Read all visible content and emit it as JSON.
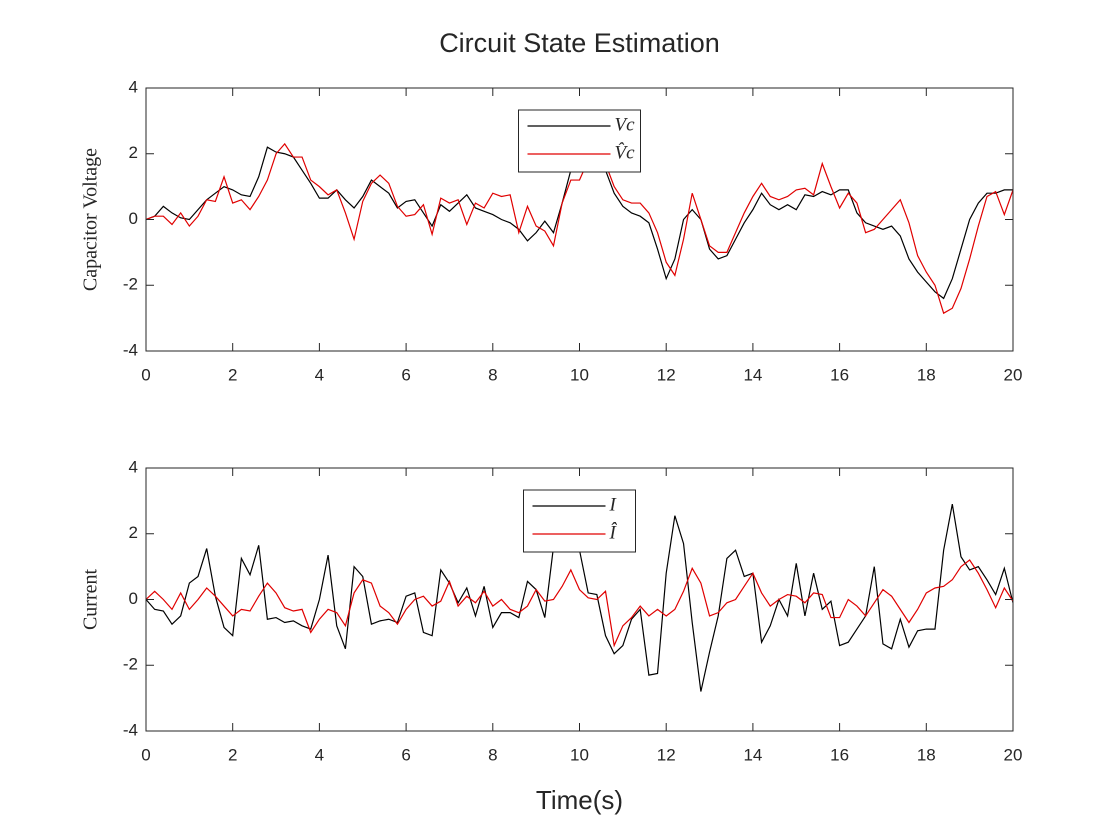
{
  "chart_data": [
    {
      "type": "line",
      "title": "Circuit State Estimation",
      "y_label": "Capacitor  Voltage",
      "legend_loc": "north",
      "x": [
        0,
        0.2,
        0.4,
        0.6,
        0.8,
        1,
        1.2,
        1.4,
        1.6,
        1.8,
        2,
        2.2,
        2.4,
        2.6,
        2.8,
        3,
        3.2,
        3.4,
        3.6,
        3.8,
        4,
        4.2,
        4.4,
        4.6,
        4.8,
        5,
        5.2,
        5.4,
        5.6,
        5.8,
        6,
        6.2,
        6.4,
        6.6,
        6.8,
        7,
        7.2,
        7.4,
        7.6,
        7.8,
        8,
        8.2,
        8.4,
        8.6,
        8.8,
        9,
        9.2,
        9.4,
        9.6,
        9.8,
        10,
        10.2,
        10.4,
        10.6,
        10.8,
        11,
        11.2,
        11.4,
        11.6,
        11.8,
        12,
        12.2,
        12.4,
        12.6,
        12.8,
        13,
        13.2,
        13.4,
        13.6,
        13.8,
        14,
        14.2,
        14.4,
        14.6,
        14.8,
        15,
        15.2,
        15.4,
        15.6,
        15.8,
        16,
        16.2,
        16.4,
        16.6,
        16.8,
        17,
        17.2,
        17.4,
        17.6,
        17.8,
        18,
        18.2,
        18.4,
        18.6,
        18.8,
        19,
        19.2,
        19.4,
        19.6,
        19.8,
        20
      ],
      "series": [
        {
          "name": "Vc",
          "color": "#000000",
          "values": [
            0,
            0.1,
            0.4,
            0.2,
            0.05,
            0,
            0.3,
            0.6,
            0.8,
            1.0,
            0.9,
            0.75,
            0.7,
            1.3,
            2.2,
            2.05,
            2.0,
            1.9,
            1.5,
            1.1,
            0.65,
            0.65,
            0.9,
            0.6,
            0.35,
            0.7,
            1.2,
            1.0,
            0.8,
            0.35,
            0.55,
            0.6,
            0.2,
            -0.2,
            0.45,
            0.25,
            0.5,
            0.75,
            0.35,
            0.25,
            0.15,
            0,
            -0.1,
            -0.3,
            -0.65,
            -0.4,
            -0.05,
            -0.4,
            0.5,
            1.5,
            2.3,
            2.0,
            2.0,
            1.5,
            0.8,
            0.4,
            0.2,
            0.1,
            -0.1,
            -0.9,
            -1.8,
            -1.2,
            0,
            0.3,
            0,
            -0.9,
            -1.2,
            -1.1,
            -0.6,
            -0.1,
            0.3,
            0.8,
            0.45,
            0.3,
            0.45,
            0.3,
            0.75,
            0.7,
            0.85,
            0.75,
            0.9,
            0.9,
            0.2,
            -0.1,
            -0.2,
            -0.3,
            -0.2,
            -0.5,
            -1.2,
            -1.6,
            -1.9,
            -2.2,
            -2.4,
            -1.8,
            -0.9,
            0,
            0.5,
            0.8,
            0.8,
            0.9,
            0.9
          ]
        },
        {
          "name": "V̂c",
          "color": "#e00000",
          "values": [
            0,
            0.1,
            0.1,
            -0.15,
            0.2,
            -0.2,
            0.1,
            0.6,
            0.55,
            1.3,
            0.5,
            0.6,
            0.3,
            0.7,
            1.2,
            2.0,
            2.3,
            1.9,
            1.9,
            1.2,
            1.0,
            0.75,
            0.9,
            0.2,
            -0.6,
            0.55,
            1.1,
            1.35,
            1.1,
            0.4,
            0.1,
            0.15,
            0.45,
            -0.45,
            0.65,
            0.5,
            0.6,
            -0.15,
            0.5,
            0.35,
            0.8,
            0.7,
            0.75,
            -0.4,
            0.4,
            -0.2,
            -0.35,
            -0.8,
            0.5,
            1.2,
            1.2,
            1.8,
            2.3,
            1.7,
            1.0,
            0.6,
            0.5,
            0.5,
            0.2,
            -0.4,
            -1.3,
            -1.7,
            -0.6,
            0.8,
            0,
            -0.8,
            -1.0,
            -1.0,
            -0.4,
            0.2,
            0.7,
            1.1,
            0.7,
            0.6,
            0.7,
            0.9,
            0.95,
            0.75,
            1.7,
            1.0,
            0.35,
            0.8,
            0.5,
            -0.4,
            -0.3,
            0,
            0.3,
            0.6,
            -0.1,
            -1.1,
            -1.6,
            -2.0,
            -2.85,
            -2.7,
            -2.1,
            -1.2,
            -0.2,
            0.7,
            0.85,
            0.15,
            0.9
          ]
        }
      ],
      "xlim": [
        0,
        20
      ],
      "xticks": [
        0,
        2,
        4,
        6,
        8,
        10,
        12,
        14,
        16,
        18,
        20
      ],
      "ylim": [
        -4,
        4
      ],
      "yticks": [
        -4,
        -2,
        0,
        2,
        4
      ]
    },
    {
      "type": "line",
      "x_label": "Time(s)",
      "y_label": "Current",
      "legend_loc": "north",
      "x": [
        0,
        0.2,
        0.4,
        0.6,
        0.8,
        1,
        1.2,
        1.4,
        1.6,
        1.8,
        2,
        2.2,
        2.4,
        2.6,
        2.8,
        3,
        3.2,
        3.4,
        3.6,
        3.8,
        4,
        4.2,
        4.4,
        4.6,
        4.8,
        5,
        5.2,
        5.4,
        5.6,
        5.8,
        6,
        6.2,
        6.4,
        6.6,
        6.8,
        7,
        7.2,
        7.4,
        7.6,
        7.8,
        8,
        8.2,
        8.4,
        8.6,
        8.8,
        9,
        9.2,
        9.4,
        9.6,
        9.8,
        10,
        10.2,
        10.4,
        10.6,
        10.8,
        11,
        11.2,
        11.4,
        11.6,
        11.8,
        12,
        12.2,
        12.4,
        12.6,
        12.8,
        13,
        13.2,
        13.4,
        13.6,
        13.8,
        14,
        14.2,
        14.4,
        14.6,
        14.8,
        15,
        15.2,
        15.4,
        15.6,
        15.8,
        16,
        16.2,
        16.4,
        16.6,
        16.8,
        17,
        17.2,
        17.4,
        17.6,
        17.8,
        18,
        18.2,
        18.4,
        18.6,
        18.8,
        19,
        19.2,
        19.4,
        19.6,
        19.8,
        20
      ],
      "series": [
        {
          "name": "I",
          "color": "#000000",
          "values": [
            0,
            -0.3,
            -0.35,
            -0.75,
            -0.5,
            0.5,
            0.7,
            1.55,
            0.1,
            -0.85,
            -1.1,
            1.25,
            0.75,
            1.65,
            -0.6,
            -0.55,
            -0.7,
            -0.65,
            -0.8,
            -0.9,
            0,
            1.35,
            -0.8,
            -1.5,
            1.0,
            0.7,
            -0.75,
            -0.65,
            -0.6,
            -0.7,
            0.1,
            0.2,
            -1.0,
            -1.1,
            0.9,
            0.5,
            -0.1,
            0.35,
            -0.5,
            0.4,
            -0.85,
            -0.4,
            -0.4,
            -0.55,
            0.55,
            0.3,
            -0.55,
            1.6,
            2.2,
            2.0,
            1.5,
            0.2,
            0.15,
            -1.1,
            -1.65,
            -1.4,
            -0.6,
            -0.3,
            -2.3,
            -2.25,
            0.8,
            2.55,
            1.7,
            -0.7,
            -2.8,
            -1.6,
            -0.5,
            1.25,
            1.5,
            0.7,
            0.8,
            -1.3,
            -0.8,
            0,
            -0.5,
            1.1,
            -0.5,
            0.8,
            -0.3,
            -0.05,
            -1.4,
            -1.3,
            -0.9,
            -0.5,
            1.0,
            -1.35,
            -1.5,
            -0.6,
            -1.45,
            -0.95,
            -0.9,
            -0.9,
            1.5,
            2.9,
            1.3,
            0.9,
            1.0,
            0.6,
            0.15,
            0.95,
            -0.1
          ]
        },
        {
          "name": "Î",
          "color": "#e00000",
          "values": [
            0,
            0.25,
            0,
            -0.3,
            0.2,
            -0.3,
            0,
            0.35,
            0.1,
            -0.2,
            -0.5,
            -0.3,
            -0.35,
            0.1,
            0.5,
            0.2,
            -0.25,
            -0.35,
            -0.3,
            -1.0,
            -0.6,
            -0.3,
            -0.4,
            -0.8,
            0.2,
            0.6,
            0.5,
            -0.2,
            -0.4,
            -0.75,
            -0.3,
            0,
            0.1,
            -0.2,
            -0.05,
            0.55,
            -0.2,
            0.1,
            -0.1,
            0.25,
            -0.2,
            0,
            -0.3,
            -0.4,
            -0.2,
            0.3,
            -0.05,
            0,
            0.4,
            0.9,
            0.3,
            0.05,
            0,
            0.25,
            -1.4,
            -0.8,
            -0.55,
            -0.2,
            -0.5,
            -0.3,
            -0.5,
            -0.3,
            0.25,
            0.95,
            0.5,
            -0.5,
            -0.4,
            -0.1,
            0,
            0.4,
            0.8,
            0.2,
            -0.2,
            0,
            0.15,
            0.1,
            -0.1,
            0.2,
            0.15,
            -0.55,
            -0.55,
            0,
            -0.2,
            -0.5,
            -0.1,
            0.3,
            0.1,
            -0.3,
            -0.7,
            -0.3,
            0.2,
            0.35,
            0.4,
            0.6,
            1.0,
            1.2,
            0.8,
            0.3,
            -0.25,
            0.35,
            -0.05
          ]
        }
      ],
      "xlim": [
        0,
        20
      ],
      "xticks": [
        0,
        2,
        4,
        6,
        8,
        10,
        12,
        14,
        16,
        18,
        20
      ],
      "ylim": [
        -4,
        4
      ],
      "yticks": [
        -4,
        -2,
        0,
        2,
        4
      ]
    }
  ]
}
